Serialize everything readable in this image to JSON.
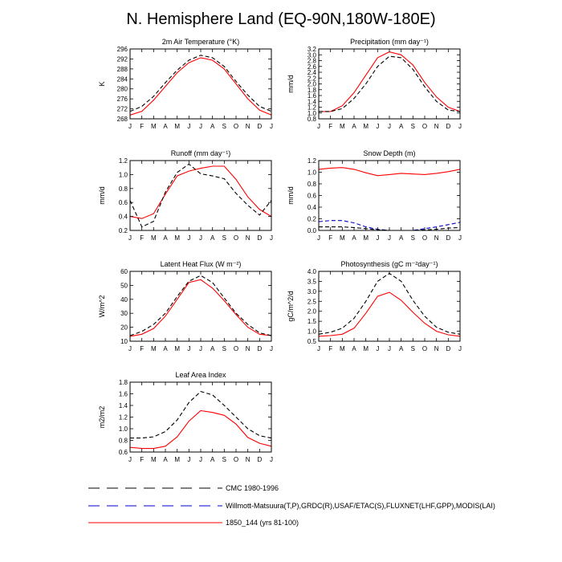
{
  "figure": {
    "title": "N. Hemisphere Land (EQ-90N,180W-180E)"
  },
  "legend": {
    "entries": [
      {
        "label": "CMC 1980-1996",
        "color": "#000000",
        "dash": "long"
      },
      {
        "label": "Willmott-Matsuura(T,P),GRDC(R),USAF/ETAC(S),FLUXNET(LHF,GPP),MODIS(LAI)",
        "color": "#0000cc",
        "dash": "long"
      },
      {
        "label": "1850_144 (yrs 81-100)",
        "color": "#ff0000",
        "dash": "solid"
      }
    ]
  },
  "chart_data": [
    {
      "type": "line",
      "title": "2m Air Temperature (°K)",
      "ylabel": "K",
      "x": [
        "J",
        "F",
        "M",
        "A",
        "M",
        "J",
        "J",
        "A",
        "S",
        "O",
        "N",
        "D",
        "J"
      ],
      "ylim": [
        268,
        296
      ],
      "yticks": [
        "268",
        "272",
        "276",
        "280",
        "284",
        "288",
        "292",
        "296"
      ],
      "series": [
        {
          "color": "#ff0000",
          "dash": "solid",
          "values": [
            269.5,
            271,
            275.5,
            281,
            286.5,
            290.5,
            292.5,
            291.5,
            288,
            282,
            276,
            271.5,
            269.5
          ]
        },
        {
          "color": "#000000",
          "dash": "dashed",
          "values": [
            271,
            273,
            277,
            282.5,
            287.5,
            291.5,
            293.5,
            292.5,
            289,
            283,
            277.5,
            273,
            271
          ]
        }
      ]
    },
    {
      "type": "line",
      "title": "Precipitation (mm day⁻¹)",
      "ylabel": "mm/d",
      "x": [
        "J",
        "F",
        "M",
        "A",
        "M",
        "J",
        "J",
        "A",
        "S",
        "O",
        "N",
        "D",
        "J"
      ],
      "ylim": [
        0.8,
        3.2
      ],
      "yticks": [
        "0.8",
        "1.0",
        "1.2",
        "1.4",
        "1.6",
        "1.8",
        "2.0",
        "2.2",
        "2.4",
        "2.6",
        "2.8",
        "3.0",
        "3.2"
      ],
      "series": [
        {
          "color": "#ff0000",
          "dash": "solid",
          "values": [
            1.05,
            1.05,
            1.25,
            1.7,
            2.3,
            2.9,
            3.1,
            3.0,
            2.65,
            2.05,
            1.55,
            1.2,
            1.05
          ]
        },
        {
          "color": "#000000",
          "dash": "dashed",
          "values": [
            1.05,
            1.05,
            1.15,
            1.5,
            2.0,
            2.6,
            2.95,
            2.9,
            2.5,
            1.9,
            1.4,
            1.1,
            1.05
          ]
        }
      ]
    },
    {
      "type": "line",
      "title": "Runoff (mm day⁻¹)",
      "ylabel": "mm/d",
      "x": [
        "J",
        "F",
        "M",
        "A",
        "M",
        "J",
        "J",
        "A",
        "S",
        "O",
        "N",
        "D",
        "J"
      ],
      "ylim": [
        0.2,
        1.2
      ],
      "yticks": [
        "0.2",
        "0.4",
        "0.6",
        "0.8",
        "1.0",
        "1.2"
      ],
      "series": [
        {
          "color": "#ff0000",
          "dash": "solid",
          "values": [
            0.4,
            0.37,
            0.44,
            0.72,
            0.98,
            1.05,
            1.09,
            1.12,
            1.12,
            0.93,
            0.68,
            0.5,
            0.4
          ]
        },
        {
          "color": "#000000",
          "dash": "dashed",
          "values": [
            0.63,
            0.25,
            0.33,
            0.75,
            1.03,
            1.15,
            1.01,
            0.98,
            0.94,
            0.73,
            0.56,
            0.42,
            0.63
          ]
        }
      ]
    },
    {
      "type": "line",
      "title": "Snow Depth (m)",
      "ylabel": "mm/d",
      "x": [
        "J",
        "F",
        "M",
        "A",
        "M",
        "J",
        "J",
        "A",
        "S",
        "O",
        "N",
        "D",
        "J"
      ],
      "ylim": [
        0.0,
        1.2
      ],
      "yticks": [
        "0.0",
        "0.2",
        "0.4",
        "0.6",
        "0.8",
        "1.0",
        "1.2"
      ],
      "series": [
        {
          "color": "#ff0000",
          "dash": "solid",
          "values": [
            1.05,
            1.07,
            1.08,
            1.05,
            0.99,
            0.94,
            0.96,
            0.98,
            0.97,
            0.96,
            0.98,
            1.01,
            1.05
          ]
        },
        {
          "color": "#0000cc",
          "dash": "dashed",
          "values": [
            0.15,
            0.17,
            0.17,
            0.13,
            0.06,
            0.02,
            0.0,
            0.0,
            0.0,
            0.03,
            0.06,
            0.1,
            0.14
          ]
        },
        {
          "color": "#000000",
          "dash": "dashed",
          "values": [
            0.06,
            0.06,
            0.06,
            0.05,
            0.03,
            0.01,
            0.0,
            0.0,
            0.0,
            0.01,
            0.02,
            0.04,
            0.05
          ]
        }
      ]
    },
    {
      "type": "line",
      "title": "Latent Heat Flux (W m⁻²)",
      "ylabel": "W/m^2",
      "x": [
        "J",
        "F",
        "M",
        "A",
        "M",
        "J",
        "J",
        "A",
        "S",
        "O",
        "N",
        "D",
        "J"
      ],
      "ylim": [
        10,
        60
      ],
      "yticks": [
        "10",
        "20",
        "30",
        "40",
        "50",
        "60"
      ],
      "series": [
        {
          "color": "#ff0000",
          "dash": "solid",
          "values": [
            13.5,
            15,
            19,
            28,
            40,
            52,
            54,
            48,
            39,
            29,
            20,
            15,
            14
          ]
        },
        {
          "color": "#000000",
          "dash": "dashed",
          "values": [
            14,
            17,
            22,
            30,
            42,
            53,
            57,
            52,
            41,
            30,
            22,
            16,
            14
          ]
        }
      ]
    },
    {
      "type": "line",
      "title": "Photosynthesis (gC m⁻²day⁻¹)",
      "ylabel": "gC/m^2/d",
      "x": [
        "J",
        "F",
        "M",
        "A",
        "M",
        "J",
        "J",
        "A",
        "S",
        "O",
        "N",
        "D",
        "J"
      ],
      "ylim": [
        0.5,
        4.0
      ],
      "yticks": [
        "0.5",
        "1.0",
        "1.5",
        "2.0",
        "2.5",
        "3.0",
        "3.5",
        "4.0"
      ],
      "series": [
        {
          "color": "#ff0000",
          "dash": "solid",
          "values": [
            0.75,
            0.78,
            0.85,
            1.15,
            1.9,
            2.75,
            2.95,
            2.55,
            1.95,
            1.4,
            1.0,
            0.82,
            0.75
          ]
        },
        {
          "color": "#000000",
          "dash": "dashed",
          "values": [
            0.85,
            0.95,
            1.15,
            1.65,
            2.5,
            3.5,
            3.9,
            3.5,
            2.55,
            1.75,
            1.2,
            0.95,
            0.85
          ]
        }
      ]
    },
    {
      "type": "line",
      "title": "Leaf Area Index",
      "ylabel": "m2/m2",
      "x": [
        "J",
        "F",
        "M",
        "A",
        "M",
        "J",
        "J",
        "A",
        "S",
        "O",
        "N",
        "D",
        "J"
      ],
      "ylim": [
        0.6,
        1.8
      ],
      "yticks": [
        "0.6",
        "0.8",
        "1.0",
        "1.2",
        "1.4",
        "1.6",
        "1.8"
      ],
      "series": [
        {
          "color": "#ff0000",
          "dash": "solid",
          "values": [
            0.68,
            0.66,
            0.66,
            0.7,
            0.86,
            1.13,
            1.31,
            1.28,
            1.23,
            1.08,
            0.85,
            0.75,
            0.7
          ]
        },
        {
          "color": "#000000",
          "dash": "dashed",
          "values": [
            0.84,
            0.84,
            0.86,
            0.95,
            1.15,
            1.45,
            1.64,
            1.58,
            1.4,
            1.2,
            1.0,
            0.88,
            0.84
          ]
        }
      ]
    }
  ]
}
